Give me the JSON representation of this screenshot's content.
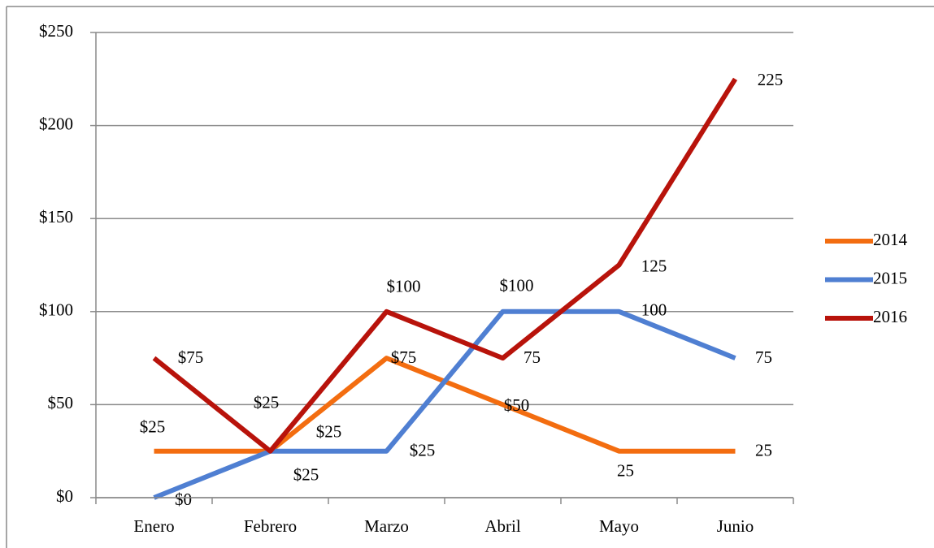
{
  "chart_data": {
    "type": "line",
    "categories": [
      "Enero",
      "Febrero",
      "Marzo",
      "Abril",
      "Mayo",
      "Junio"
    ],
    "series": [
      {
        "name": "2014",
        "color": "#f36d10",
        "values": [
          25,
          25,
          75,
          50,
          25,
          25
        ],
        "value_labels": [
          "$25",
          "$25",
          "$75",
          "$50",
          "25",
          "25"
        ]
      },
      {
        "name": "2015",
        "color": "#4f7fd2",
        "values": [
          0,
          25,
          25,
          100,
          100,
          75
        ],
        "value_labels": [
          "$0",
          "$25",
          "$25",
          "$100",
          "100",
          "75"
        ]
      },
      {
        "name": "2016",
        "color": "#b8130b",
        "values": [
          75,
          25,
          100,
          75,
          125,
          225
        ],
        "value_labels": [
          "$75",
          "$25",
          "$100",
          "75",
          "125",
          "225"
        ]
      }
    ],
    "ylim": [
      0,
      250
    ],
    "yticks": [
      {
        "value": 0,
        "label": "$0"
      },
      {
        "value": 50,
        "label": "$50"
      },
      {
        "value": 100,
        "label": "$100"
      },
      {
        "value": 150,
        "label": "$150"
      },
      {
        "value": 200,
        "label": "$200"
      },
      {
        "value": 250,
        "label": "$250"
      }
    ],
    "grid": true,
    "legend": "right"
  }
}
